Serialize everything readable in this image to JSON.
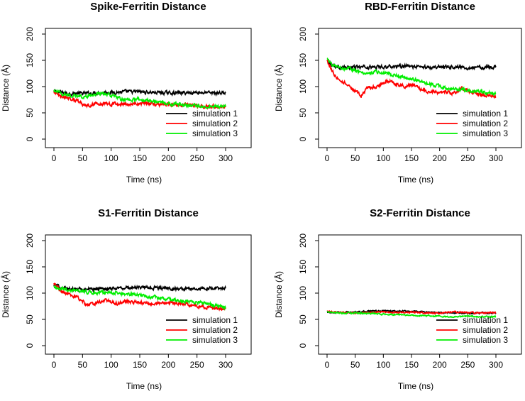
{
  "colors": {
    "simulation 1": "#000000",
    "simulation 2": "#ff0000",
    "simulation 3": "#00ee00"
  },
  "chart_data": [
    {
      "type": "line",
      "title": "Spike-Ferritin Distance",
      "xlabel": "Time (ns)",
      "ylabel": "Distance (Å)",
      "xlim": [
        0,
        300
      ],
      "ylim": [
        0,
        200
      ],
      "xticks": [
        0,
        50,
        100,
        150,
        200,
        250,
        300
      ],
      "yticks": [
        0,
        50,
        100,
        150,
        200
      ],
      "legend": "bottom-right",
      "series": [
        {
          "name": "simulation 1",
          "points": [
            [
              0,
              90
            ],
            [
              10,
              89
            ],
            [
              25,
              87
            ],
            [
              50,
              87
            ],
            [
              75,
              88
            ],
            [
              100,
              89
            ],
            [
              125,
              90
            ],
            [
              150,
              90
            ],
            [
              175,
              89
            ],
            [
              200,
              88
            ],
            [
              225,
              88
            ],
            [
              250,
              89
            ],
            [
              275,
              88
            ],
            [
              300,
              88
            ]
          ]
        },
        {
          "name": "simulation 2",
          "points": [
            [
              0,
              90
            ],
            [
              10,
              83
            ],
            [
              25,
              78
            ],
            [
              40,
              74
            ],
            [
              50,
              66
            ],
            [
              55,
              62
            ],
            [
              60,
              64
            ],
            [
              75,
              68
            ],
            [
              100,
              67
            ],
            [
              125,
              66
            ],
            [
              150,
              68
            ],
            [
              175,
              67
            ],
            [
              200,
              66
            ],
            [
              225,
              65
            ],
            [
              250,
              63
            ],
            [
              275,
              62
            ],
            [
              300,
              61
            ]
          ]
        },
        {
          "name": "simulation 3",
          "points": [
            [
              0,
              92
            ],
            [
              10,
              88
            ],
            [
              25,
              84
            ],
            [
              50,
              80
            ],
            [
              75,
              85
            ],
            [
              90,
              87
            ],
            [
              100,
              84
            ],
            [
              110,
              79
            ],
            [
              125,
              74
            ],
            [
              150,
              76
            ],
            [
              175,
              72
            ],
            [
              200,
              68
            ],
            [
              225,
              66
            ],
            [
              250,
              64
            ],
            [
              275,
              62
            ],
            [
              300,
              62
            ]
          ]
        }
      ]
    },
    {
      "type": "line",
      "title": "RBD-Ferritin Distance",
      "xlabel": "Time (ns)",
      "ylabel": "Distance (Å)",
      "xlim": [
        0,
        300
      ],
      "ylim": [
        0,
        200
      ],
      "xticks": [
        0,
        50,
        100,
        150,
        200,
        250,
        300
      ],
      "yticks": [
        0,
        50,
        100,
        150,
        200
      ],
      "legend": "bottom-right",
      "series": [
        {
          "name": "simulation 1",
          "points": [
            [
              0,
              150
            ],
            [
              5,
              145
            ],
            [
              15,
              138
            ],
            [
              30,
              136
            ],
            [
              50,
              137
            ],
            [
              75,
              137
            ],
            [
              100,
              138
            ],
            [
              125,
              139
            ],
            [
              150,
              138
            ],
            [
              175,
              137
            ],
            [
              200,
              138
            ],
            [
              225,
              138
            ],
            [
              250,
              136
            ],
            [
              275,
              137
            ],
            [
              300,
              137
            ]
          ]
        },
        {
          "name": "simulation 2",
          "points": [
            [
              0,
              150
            ],
            [
              5,
              138
            ],
            [
              15,
              120
            ],
            [
              25,
              112
            ],
            [
              35,
              105
            ],
            [
              45,
              96
            ],
            [
              55,
              88
            ],
            [
              60,
              82
            ],
            [
              70,
              95
            ],
            [
              80,
              100
            ],
            [
              90,
              98
            ],
            [
              100,
              108
            ],
            [
              110,
              112
            ],
            [
              125,
              104
            ],
            [
              140,
              100
            ],
            [
              150,
              103
            ],
            [
              165,
              96
            ],
            [
              180,
              90
            ],
            [
              200,
              88
            ],
            [
              225,
              88
            ],
            [
              240,
              96
            ],
            [
              250,
              92
            ],
            [
              275,
              84
            ],
            [
              300,
              80
            ]
          ]
        },
        {
          "name": "simulation 3",
          "points": [
            [
              0,
              152
            ],
            [
              10,
              140
            ],
            [
              25,
              136
            ],
            [
              40,
              134
            ],
            [
              50,
              130
            ],
            [
              70,
              125
            ],
            [
              90,
              128
            ],
            [
              100,
              127
            ],
            [
              110,
              125
            ],
            [
              125,
              120
            ],
            [
              150,
              115
            ],
            [
              175,
              107
            ],
            [
              200,
              100
            ],
            [
              225,
              96
            ],
            [
              250,
              93
            ],
            [
              275,
              90
            ],
            [
              300,
              86
            ]
          ]
        }
      ]
    },
    {
      "type": "line",
      "title": "S1-Ferritin Distance",
      "xlabel": "Time (ns)",
      "ylabel": "Distance (Å)",
      "xlim": [
        0,
        300
      ],
      "ylim": [
        0,
        200
      ],
      "xticks": [
        0,
        50,
        100,
        150,
        200,
        250,
        300
      ],
      "yticks": [
        0,
        50,
        100,
        150,
        200
      ],
      "legend": "bottom-right",
      "series": [
        {
          "name": "simulation 1",
          "points": [
            [
              0,
              115
            ],
            [
              10,
              112
            ],
            [
              25,
              108
            ],
            [
              50,
              107
            ],
            [
              75,
              108
            ],
            [
              100,
              109
            ],
            [
              125,
              110
            ],
            [
              150,
              111
            ],
            [
              175,
              110
            ],
            [
              200,
              109
            ],
            [
              225,
              108
            ],
            [
              250,
              109
            ],
            [
              275,
              108
            ],
            [
              300,
              109
            ]
          ]
        },
        {
          "name": "simulation 2",
          "points": [
            [
              0,
              118
            ],
            [
              10,
              106
            ],
            [
              25,
              98
            ],
            [
              40,
              92
            ],
            [
              50,
              86
            ],
            [
              55,
              78
            ],
            [
              60,
              76
            ],
            [
              75,
              82
            ],
            [
              90,
              86
            ],
            [
              100,
              84
            ],
            [
              110,
              80
            ],
            [
              125,
              84
            ],
            [
              150,
              82
            ],
            [
              175,
              80
            ],
            [
              200,
              82
            ],
            [
              225,
              79
            ],
            [
              250,
              76
            ],
            [
              275,
              72
            ],
            [
              300,
              70
            ]
          ]
        },
        {
          "name": "simulation 3",
          "points": [
            [
              0,
              113
            ],
            [
              10,
              110
            ],
            [
              25,
              106
            ],
            [
              50,
              103
            ],
            [
              75,
              100
            ],
            [
              100,
              102
            ],
            [
              125,
              98
            ],
            [
              150,
              97
            ],
            [
              175,
              92
            ],
            [
              200,
              88
            ],
            [
              225,
              85
            ],
            [
              250,
              83
            ],
            [
              275,
              78
            ],
            [
              300,
              72
            ]
          ]
        }
      ]
    },
    {
      "type": "line",
      "title": "S2-Ferritin Distance",
      "xlabel": "Time (ns)",
      "ylabel": "Distance (Å)",
      "xlim": [
        0,
        300
      ],
      "ylim": [
        0,
        200
      ],
      "xticks": [
        0,
        50,
        100,
        150,
        200,
        250,
        300
      ],
      "yticks": [
        0,
        50,
        100,
        150,
        200
      ],
      "legend": "bottom-right",
      "series": [
        {
          "name": "simulation 1",
          "points": [
            [
              0,
              63
            ],
            [
              25,
              63
            ],
            [
              50,
              64
            ],
            [
              75,
              65
            ],
            [
              100,
              66
            ],
            [
              125,
              66
            ],
            [
              150,
              65
            ],
            [
              175,
              64
            ],
            [
              200,
              63
            ],
            [
              225,
              63
            ],
            [
              250,
              62
            ],
            [
              275,
              62
            ],
            [
              300,
              62
            ]
          ]
        },
        {
          "name": "simulation 2",
          "points": [
            [
              0,
              65
            ],
            [
              25,
              63
            ],
            [
              50,
              62
            ],
            [
              75,
              63
            ],
            [
              100,
              64
            ],
            [
              125,
              63
            ],
            [
              150,
              64
            ],
            [
              175,
              62
            ],
            [
              200,
              62
            ],
            [
              225,
              64
            ],
            [
              250,
              63
            ],
            [
              275,
              62
            ],
            [
              300,
              63
            ]
          ]
        },
        {
          "name": "simulation 3",
          "points": [
            [
              0,
              64
            ],
            [
              25,
              62
            ],
            [
              50,
              62
            ],
            [
              75,
              61
            ],
            [
              100,
              60
            ],
            [
              125,
              59
            ],
            [
              150,
              58
            ],
            [
              175,
              57
            ],
            [
              200,
              56
            ],
            [
              225,
              55
            ],
            [
              250,
              56
            ],
            [
              275,
              55
            ],
            [
              300,
              55
            ]
          ]
        }
      ]
    }
  ]
}
